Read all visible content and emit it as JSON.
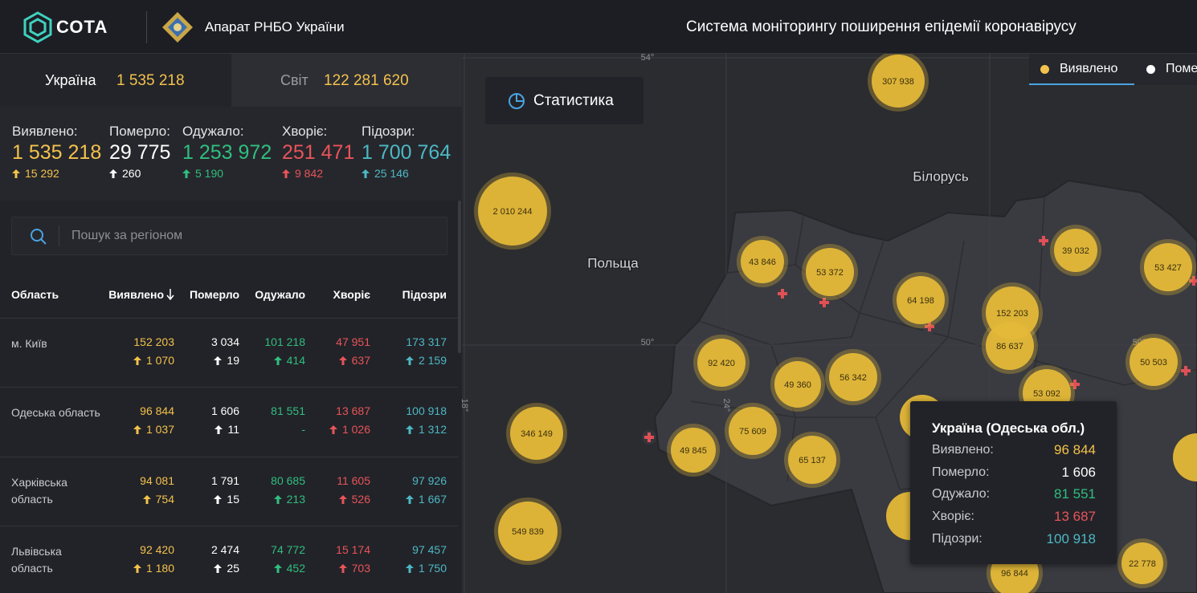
{
  "header": {
    "logo": "СОТА",
    "organization": "Апарат РНБО України",
    "title": "Система моніторингу поширення епідемії коронавірусу"
  },
  "tabs": [
    {
      "label": "Україна",
      "value": "1 535 218"
    },
    {
      "label": "Світ",
      "value": "122 281 620"
    }
  ],
  "summary": [
    {
      "label": "Виявлено:",
      "value": "1 535 218",
      "change": "15 292"
    },
    {
      "label": "Померло:",
      "value": "29 775",
      "change": "260"
    },
    {
      "label": "Одужало:",
      "value": "1 253 972",
      "change": "5 190"
    },
    {
      "label": "Хворіє:",
      "value": "251 471",
      "change": "9 842"
    },
    {
      "label": "Підозри:",
      "value": "1 700 764",
      "change": "25 146"
    }
  ],
  "search": {
    "placeholder": "Пошук за регіоном"
  },
  "table": {
    "columns": [
      "Область",
      "Виявлено",
      "Померло",
      "Одужало",
      "Хворіє",
      "Підозри"
    ],
    "rows": [
      {
        "region": "м. Київ",
        "cells": [
          {
            "value": "152 203",
            "change": "1 070"
          },
          {
            "value": "3 034",
            "change": "19"
          },
          {
            "value": "101 218",
            "change": "414"
          },
          {
            "value": "47 951",
            "change": "637"
          },
          {
            "value": "173 317",
            "change": "2 159"
          }
        ]
      },
      {
        "region": "Одеська область",
        "cells": [
          {
            "value": "96 844",
            "change": "1 037"
          },
          {
            "value": "1 606",
            "change": "11"
          },
          {
            "value": "81 551",
            "note": "-"
          },
          {
            "value": "13 687",
            "change": "1 026"
          },
          {
            "value": "100 918",
            "change": "1 312"
          }
        ]
      },
      {
        "region": "Харківська область",
        "cells": [
          {
            "value": "94 081",
            "change": "754"
          },
          {
            "value": "1 791",
            "change": "15"
          },
          {
            "value": "80 685",
            "change": "213"
          },
          {
            "value": "11 605",
            "change": "526"
          },
          {
            "value": "97 926",
            "change": "1 667"
          }
        ]
      },
      {
        "region": "Львівська область",
        "cells": [
          {
            "value": "92 420",
            "change": "1 180"
          },
          {
            "value": "2 474",
            "change": "25"
          },
          {
            "value": "74 772",
            "change": "452"
          },
          {
            "value": "15 174",
            "change": "703"
          },
          {
            "value": "97 457",
            "change": "1 750"
          }
        ]
      }
    ]
  },
  "map": {
    "button": "Статистика",
    "legend": [
      "Виявлено",
      "Поме"
    ],
    "countries": [
      "Польща",
      "Білорусь"
    ],
    "coordinates": [
      "54°",
      "50°",
      "50°",
      "18°",
      "24°"
    ],
    "clusters": [
      "307 938",
      "2 010 244",
      "43 846",
      "53 372",
      "64 198",
      "39 032",
      "53 427",
      "152 203",
      "86 637",
      "92 420",
      "49 360",
      "56 342",
      "50 503",
      "53 092",
      "346 149",
      "49 845",
      "75 609",
      "65 137",
      "549 839",
      "22 778",
      "96 844"
    ],
    "tooltip": {
      "title": "Україна (Одеська обл.)",
      "rows": [
        {
          "label": "Виявлено:",
          "value": "96 844"
        },
        {
          "label": "Померло:",
          "value": "1 606"
        },
        {
          "label": "Одужало:",
          "value": "81 551"
        },
        {
          "label": "Хворіє:",
          "value": "13 687"
        },
        {
          "label": "Підозри:",
          "value": "100 918"
        }
      ]
    }
  }
}
